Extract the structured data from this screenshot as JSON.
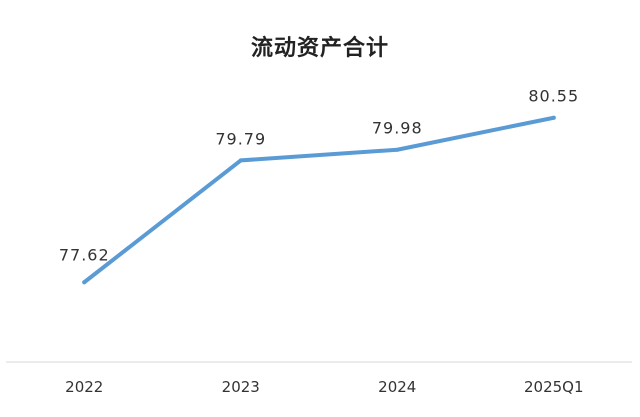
{
  "chart_data": {
    "type": "line",
    "title": "流动资产合计",
    "categories": [
      "2022",
      "2023",
      "2024",
      "2025Q1"
    ],
    "series": [
      {
        "values": [
          77.62,
          79.79,
          79.98,
          80.55
        ],
        "data_labels": [
          "77.62",
          "79.79",
          "79.98",
          "80.55"
        ]
      }
    ],
    "ylim": [
      76.2,
      81.4
    ],
    "grid": false,
    "legend": "none",
    "colors": {
      "line": "#5B9BD5",
      "axis": "#D9D9D9",
      "text": "#333333"
    }
  }
}
